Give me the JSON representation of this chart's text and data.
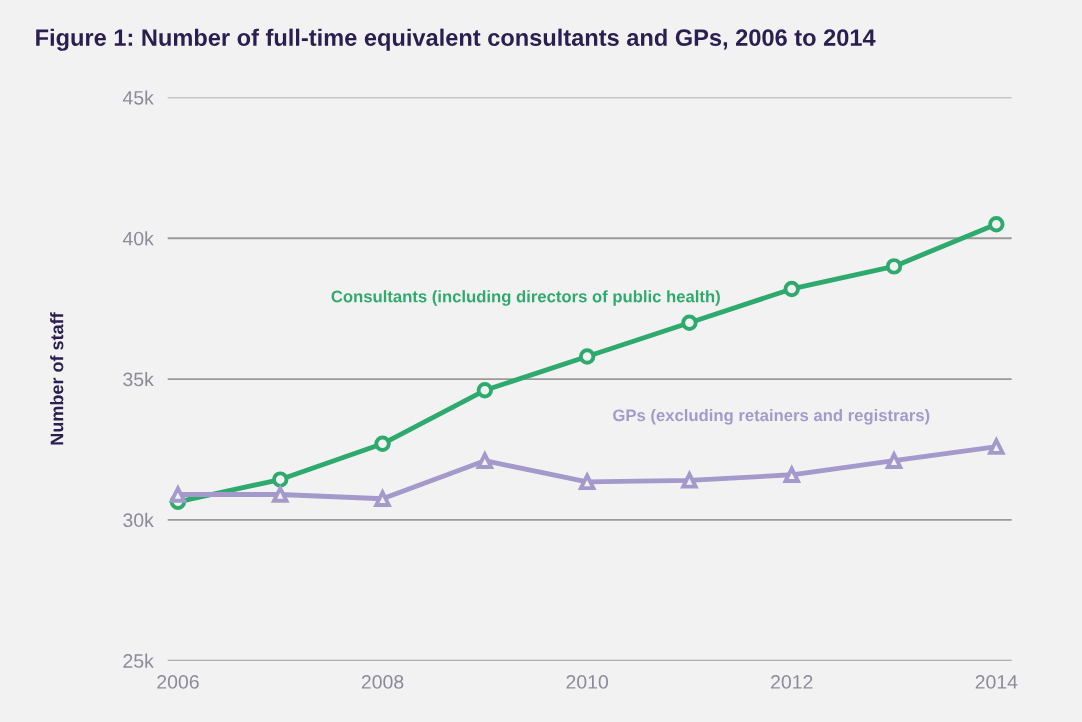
{
  "chart_data": {
    "type": "line",
    "title": "Figure 1: Number of full-time equivalent consultants and GPs, 2006 to 2014",
    "ylabel": "Number of staff",
    "x": [
      2006,
      2007,
      2008,
      2009,
      2010,
      2011,
      2012,
      2013,
      2014
    ],
    "series": [
      {
        "name": "Consultants (including directors of public health)",
        "color": "#2eaa6e",
        "marker": "circle",
        "values": [
          30640,
          31430,
          32700,
          34600,
          35800,
          37000,
          38200,
          39000,
          40500
        ]
      },
      {
        "name": "GPs (excluding retainers and registrars)",
        "color": "#a39acb",
        "marker": "triangle",
        "values": [
          30900,
          30900,
          30750,
          32100,
          31350,
          31400,
          31600,
          32100,
          32600
        ]
      }
    ],
    "xlim": [
      2005.9,
      2014.15
    ],
    "xticks": [
      2006,
      2008,
      2010,
      2012,
      2014
    ],
    "ylim": [
      25000,
      45000
    ],
    "yticks": [
      {
        "value": 25000,
        "label": "25k"
      },
      {
        "value": 30000,
        "label": "30k"
      },
      {
        "value": 35000,
        "label": "35k"
      },
      {
        "value": 40000,
        "label": "40k"
      },
      {
        "value": 45000,
        "label": "45k"
      }
    ],
    "grid": "y",
    "legend": false
  }
}
